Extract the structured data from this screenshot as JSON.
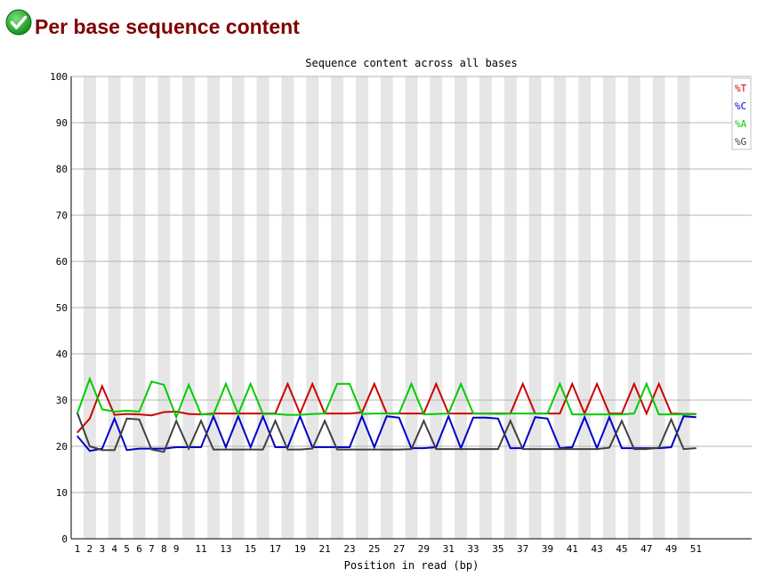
{
  "header": {
    "title": "Per base sequence content",
    "status_icon": "check-circle-icon",
    "status_color": "#22aa22"
  },
  "chart_data": {
    "type": "line",
    "title": "Sequence content across all bases",
    "xlabel": "Position in read (bp)",
    "ylabel": "",
    "ylim": [
      0,
      100
    ],
    "yticks": [
      0,
      10,
      20,
      30,
      40,
      50,
      60,
      70,
      80,
      90,
      100
    ],
    "x": [
      1,
      2,
      3,
      4,
      5,
      6,
      7,
      8,
      9,
      10,
      11,
      12,
      13,
      14,
      15,
      16,
      17,
      18,
      19,
      20,
      21,
      22,
      23,
      24,
      25,
      26,
      27,
      28,
      29,
      30,
      31,
      32,
      33,
      34,
      35,
      36,
      37,
      38,
      39,
      40,
      41,
      42,
      43,
      44,
      45,
      46,
      47,
      48,
      49,
      50,
      51
    ],
    "xtick_labels": [
      "1",
      "2",
      "3",
      "4",
      "5",
      "6",
      "7",
      "8",
      "9",
      "11",
      "13",
      "15",
      "17",
      "19",
      "21",
      "23",
      "25",
      "27",
      "29",
      "31",
      "33",
      "35",
      "37",
      "39",
      "41",
      "43",
      "45",
      "47",
      "49",
      "51"
    ],
    "grid": true,
    "legend_position": "top-right",
    "series": [
      {
        "name": "%T",
        "color": "#cc0000",
        "values": [
          23.0,
          26.0,
          33.0,
          26.8,
          27.0,
          26.9,
          26.7,
          27.4,
          27.5,
          27.0,
          26.9,
          27.1,
          27.1,
          27.1,
          27.1,
          27.1,
          27.1,
          33.5,
          27.1,
          33.5,
          27.1,
          27.1,
          27.1,
          27.3,
          33.5,
          27.1,
          27.1,
          27.1,
          27.1,
          33.5,
          27.1,
          27.1,
          27.1,
          27.1,
          27.1,
          27.1,
          33.5,
          27.1,
          27.1,
          27.1,
          33.5,
          27.1,
          33.5,
          27.1,
          27.1,
          33.5,
          27.1,
          33.5,
          27.1,
          27.0,
          27.0
        ]
      },
      {
        "name": "%C",
        "color": "#0000cc",
        "values": [
          22.2,
          19.0,
          19.5,
          26.0,
          19.2,
          19.5,
          19.5,
          19.5,
          19.8,
          19.8,
          19.8,
          26.5,
          19.8,
          26.5,
          19.8,
          26.5,
          19.8,
          19.8,
          26.5,
          19.8,
          19.8,
          19.8,
          19.8,
          26.5,
          19.8,
          26.5,
          26.2,
          19.6,
          19.6,
          19.8,
          26.5,
          19.6,
          26.2,
          26.2,
          26.0,
          19.6,
          19.6,
          26.3,
          26.0,
          19.6,
          19.8,
          26.3,
          19.6,
          26.3,
          19.6,
          19.6,
          19.6,
          19.6,
          19.8,
          26.5,
          26.3
        ]
      },
      {
        "name": "%A",
        "color": "#00cc00",
        "values": [
          27.2,
          34.6,
          28.0,
          27.5,
          27.7,
          27.5,
          34.0,
          33.3,
          26.3,
          33.3,
          26.9,
          26.9,
          33.5,
          27.0,
          33.5,
          27.0,
          27.0,
          26.8,
          26.8,
          27.0,
          27.1,
          33.5,
          33.5,
          27.0,
          27.1,
          27.1,
          27.1,
          33.5,
          26.9,
          27.0,
          27.1,
          33.5,
          27.1,
          27.1,
          27.0,
          27.1,
          27.1,
          27.1,
          27.1,
          33.5,
          26.9,
          26.9,
          26.9,
          26.9,
          26.9,
          27.1,
          33.5,
          26.9,
          26.9,
          26.9,
          26.9
        ]
      },
      {
        "name": "%G",
        "color": "#404040",
        "values": [
          27.2,
          20.0,
          19.2,
          19.2,
          26.0,
          25.8,
          19.3,
          18.8,
          25.5,
          19.5,
          25.5,
          19.3,
          19.3,
          19.3,
          19.3,
          19.3,
          25.5,
          19.3,
          19.3,
          19.5,
          25.5,
          19.3,
          19.3,
          19.3,
          19.3,
          19.3,
          19.3,
          19.4,
          25.5,
          19.4,
          19.4,
          19.4,
          19.4,
          19.4,
          19.4,
          25.5,
          19.4,
          19.4,
          19.4,
          19.4,
          19.4,
          19.4,
          19.4,
          19.7,
          25.5,
          19.4,
          19.4,
          19.7,
          25.8,
          19.4,
          19.6
        ]
      }
    ]
  }
}
